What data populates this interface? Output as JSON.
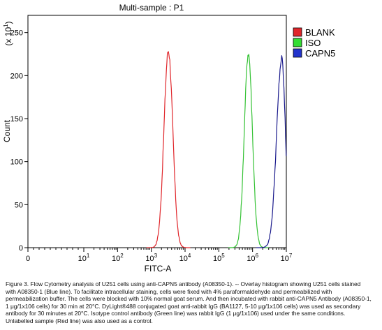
{
  "chart_data": {
    "type": "line",
    "title": "Multi-sample : P1",
    "xlabel": "FITC-A",
    "ylabel": "Count",
    "y_multiplier_label": "(x 10",
    "y_multiplier_exp": "1",
    "y_multiplier_close": ")",
    "xscale": "log (biexponential, 0 to 10^7)",
    "xlim": [
      0,
      10000000
    ],
    "ylim": [
      0,
      270
    ],
    "x_ticks": [
      {
        "base": "0",
        "exp": ""
      },
      {
        "base": "10",
        "exp": "1"
      },
      {
        "base": "10",
        "exp": "2"
      },
      {
        "base": "10",
        "exp": "3"
      },
      {
        "base": "10",
        "exp": "4"
      },
      {
        "base": "10",
        "exp": "5"
      },
      {
        "base": "10",
        "exp": "6"
      },
      {
        "base": "10",
        "exp": "7"
      }
    ],
    "y_ticks": [
      "0",
      "50",
      "100",
      "150",
      "200",
      "250"
    ],
    "y_tick_values": [
      0,
      50,
      100,
      150,
      200,
      250
    ],
    "legend_position": "top-right, outside plot",
    "grid": false,
    "series": [
      {
        "name": "BLANK",
        "color": "#e0262b",
        "swatch": "#e0262b",
        "peak_x": 3200,
        "peak_y": 229,
        "width_decades": 0.13,
        "skew": 1.0
      },
      {
        "name": "ISO",
        "color": "#34c234",
        "swatch": "#33dd33",
        "peak_x": 750000,
        "peak_y": 226,
        "width_decades": 0.12,
        "skew": 1.0
      },
      {
        "name": "CAPN5",
        "color": "#1a1a8c",
        "swatch": "#2233cc",
        "peak_x": 7300000,
        "peak_y": 219,
        "width_decades": 0.15,
        "skew": 0.75
      }
    ]
  },
  "caption": "Figure 3. Flow Cytometry analysis of U251 cells using anti-CAPN5 antibody (A08350-1).  -- Overlay histogram showing U251 cells stained with A08350-1 (Blue line). To facilitate intracellular staining, cells were fixed with 4% paraformaldehyde and permeabilized with permeabilization buffer. The cells were blocked with 10% normal goat serum. And then incubated with rabbit anti-CAPN5 Antibody (A08350-1, 1 μg/1x106 cells) for 30 min at 20°C. DyLight®488 conjugated goat anti-rabbit IgG (BA1127, 5-10 μg/1x106 cells) was used as secondary antibody for 30 minutes at 20°C. Isotype control antibody (Green line) was rabbit IgG (1 μg/1x106) used under the same conditions. Unlabelled sample (Red line) was also used as a control."
}
